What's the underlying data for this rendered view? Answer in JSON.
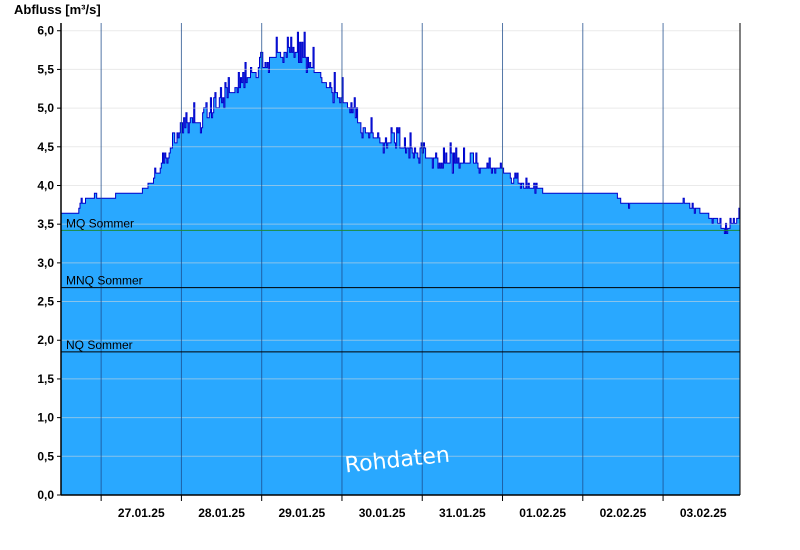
{
  "chart_data": {
    "type": "area",
    "ylabel": "Abfluss [m³/s]",
    "ylim": [
      0,
      6.1
    ],
    "yticks": [
      "0,0",
      "0,5",
      "1,0",
      "1,5",
      "2,0",
      "2,5",
      "3,0",
      "3,5",
      "4,0",
      "4,5",
      "5,0",
      "5,5",
      "6,0"
    ],
    "xlim": [
      "2025-01-26T12:00",
      "2025-02-03T23:00"
    ],
    "xticks": [
      "27.01.25",
      "28.01.25",
      "29.01.25",
      "30.01.25",
      "31.01.25",
      "01.02.25",
      "02.02.25",
      "03.02.25"
    ],
    "grid": true,
    "watermark": "Rohdaten",
    "fill_color": "#29a8ff",
    "line_color": "#0000cc",
    "reference_lines": [
      {
        "label": "MQ Sommer",
        "value": 3.42,
        "color": "#1d8a3a"
      },
      {
        "label": "MNQ Sommer",
        "value": 2.68,
        "color": "#000000"
      },
      {
        "label": "NQ Sommer",
        "value": 1.85,
        "color": "#000000"
      }
    ],
    "series": [
      {
        "x": [
          "2025-01-26T12:00",
          "2025-01-26T17:00",
          "2025-01-26T18:00",
          "2025-01-26T21:00",
          "2025-01-27T00:00",
          "2025-01-27T03:00",
          "2025-01-27T06:00",
          "2025-01-27T09:00",
          "2025-01-27T12:00",
          "2025-01-27T15:00",
          "2025-01-27T18:00",
          "2025-01-28T00:00",
          "2025-01-28T03:00",
          "2025-01-28T06:00",
          "2025-01-28T09:00",
          "2025-01-28T12:00",
          "2025-01-28T18:00",
          "2025-01-29T00:00",
          "2025-01-29T06:00",
          "2025-01-29T12:00",
          "2025-01-29T18:00",
          "2025-01-30T00:00",
          "2025-01-30T06:00",
          "2025-01-30T12:00",
          "2025-01-30T18:00",
          "2025-01-31T00:00",
          "2025-01-31T06:00",
          "2025-01-31T12:00",
          "2025-01-31T18:00",
          "2025-02-01T00:00",
          "2025-02-01T06:00",
          "2025-02-01T12:00",
          "2025-02-01T18:00",
          "2025-02-02T00:00",
          "2025-02-02T06:00",
          "2025-02-02T09:00",
          "2025-02-02T12:00",
          "2025-02-02T18:00",
          "2025-02-03T00:00",
          "2025-02-03T04:00",
          "2025-02-03T06:00",
          "2025-02-03T12:00",
          "2025-02-03T16:00",
          "2025-02-03T18:00",
          "2025-02-03T21:00",
          "2025-02-03T23:00"
        ],
        "y": [
          3.67,
          3.67,
          3.78,
          3.85,
          3.85,
          3.85,
          3.9,
          3.93,
          3.93,
          4.05,
          4.25,
          4.7,
          4.8,
          4.85,
          4.9,
          5.1,
          5.3,
          5.55,
          5.75,
          5.7,
          5.35,
          5.1,
          4.75,
          4.55,
          4.5,
          4.4,
          4.3,
          4.28,
          4.25,
          4.2,
          4.0,
          3.93,
          3.93,
          3.93,
          3.93,
          3.93,
          3.75,
          3.8,
          3.8,
          3.8,
          3.78,
          3.65,
          3.55,
          3.4,
          3.5,
          3.62
        ],
        "noise": [
          0,
          0,
          0.05,
          0.05,
          0.05,
          0.02,
          0.02,
          0.02,
          0.02,
          0.05,
          0.15,
          0.2,
          0.2,
          0.2,
          0.2,
          0.2,
          0.2,
          0.25,
          0.25,
          0.25,
          0.25,
          0.25,
          0.2,
          0.2,
          0.2,
          0.18,
          0.18,
          0.18,
          0.18,
          0.18,
          0.1,
          0.02,
          0.02,
          0.02,
          0.02,
          0.02,
          0.05,
          0.02,
          0.02,
          0.02,
          0.05,
          0.08,
          0.1,
          0.1,
          0.1,
          0.05
        ]
      }
    ]
  }
}
